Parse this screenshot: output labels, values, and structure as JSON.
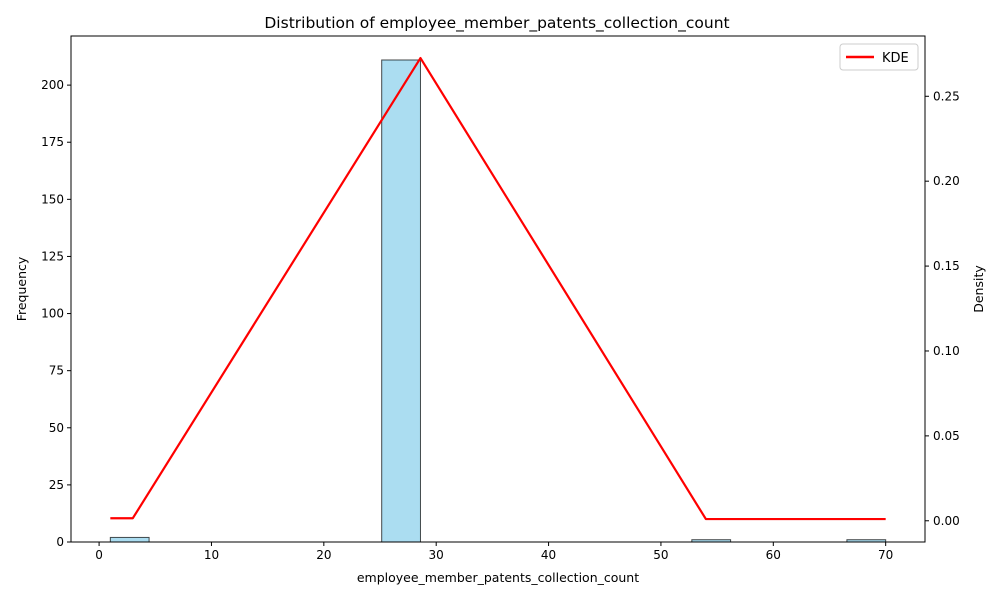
{
  "chart_data": {
    "type": "bar",
    "title": "Distribution of employee_member_patents_collection_count",
    "xlabel": "employee_member_patents_collection_count",
    "ylabel": "Frequency",
    "y2label": "Density",
    "xlim": [
      -2.5,
      73.5
    ],
    "ylim": [
      0,
      221.5
    ],
    "y2lim": [
      -0.0125,
      0.2855
    ],
    "xticks": [
      0,
      10,
      20,
      30,
      40,
      50,
      60,
      70
    ],
    "yticks": [
      0,
      25,
      50,
      75,
      100,
      125,
      150,
      175,
      200
    ],
    "y2ticks": [
      0.0,
      0.05,
      0.1,
      0.15,
      0.2,
      0.25
    ],
    "y2tick_labels": [
      "0.00",
      "0.05",
      "0.10",
      "0.15",
      "0.20",
      "0.25"
    ],
    "histogram": {
      "bins": [
        {
          "x0": 1.0,
          "x1": 4.45,
          "count": 2
        },
        {
          "x0": 4.45,
          "x1": 7.9,
          "count": 0
        },
        {
          "x0": 7.9,
          "x1": 11.35,
          "count": 0
        },
        {
          "x0": 11.35,
          "x1": 14.8,
          "count": 0
        },
        {
          "x0": 14.8,
          "x1": 18.25,
          "count": 0
        },
        {
          "x0": 18.25,
          "x1": 21.7,
          "count": 0
        },
        {
          "x0": 21.7,
          "x1": 25.15,
          "count": 0
        },
        {
          "x0": 25.15,
          "x1": 28.6,
          "count": 211
        },
        {
          "x0": 28.6,
          "x1": 32.05,
          "count": 0
        },
        {
          "x0": 32.05,
          "x1": 35.5,
          "count": 0
        },
        {
          "x0": 35.5,
          "x1": 38.95,
          "count": 0
        },
        {
          "x0": 38.95,
          "x1": 42.4,
          "count": 0
        },
        {
          "x0": 42.4,
          "x1": 45.85,
          "count": 0
        },
        {
          "x0": 45.85,
          "x1": 49.3,
          "count": 0
        },
        {
          "x0": 49.3,
          "x1": 52.75,
          "count": 0
        },
        {
          "x0": 52.75,
          "x1": 56.2,
          "count": 1
        },
        {
          "x0": 56.2,
          "x1": 59.65,
          "count": 0
        },
        {
          "x0": 59.65,
          "x1": 63.1,
          "count": 0
        },
        {
          "x0": 63.1,
          "x1": 66.55,
          "count": 0
        },
        {
          "x0": 66.55,
          "x1": 70.0,
          "count": 1
        }
      ],
      "fill": "#87ceeb",
      "edge": "#000000"
    },
    "series": [
      {
        "name": "KDE",
        "color": "#ff0000",
        "x": [
          1,
          3,
          28.6,
          54,
          56,
          70
        ],
        "y": [
          0.0015,
          0.0015,
          0.2725,
          0.001,
          0.001,
          0.001
        ]
      }
    ],
    "legend": "top-right",
    "grid": false
  }
}
